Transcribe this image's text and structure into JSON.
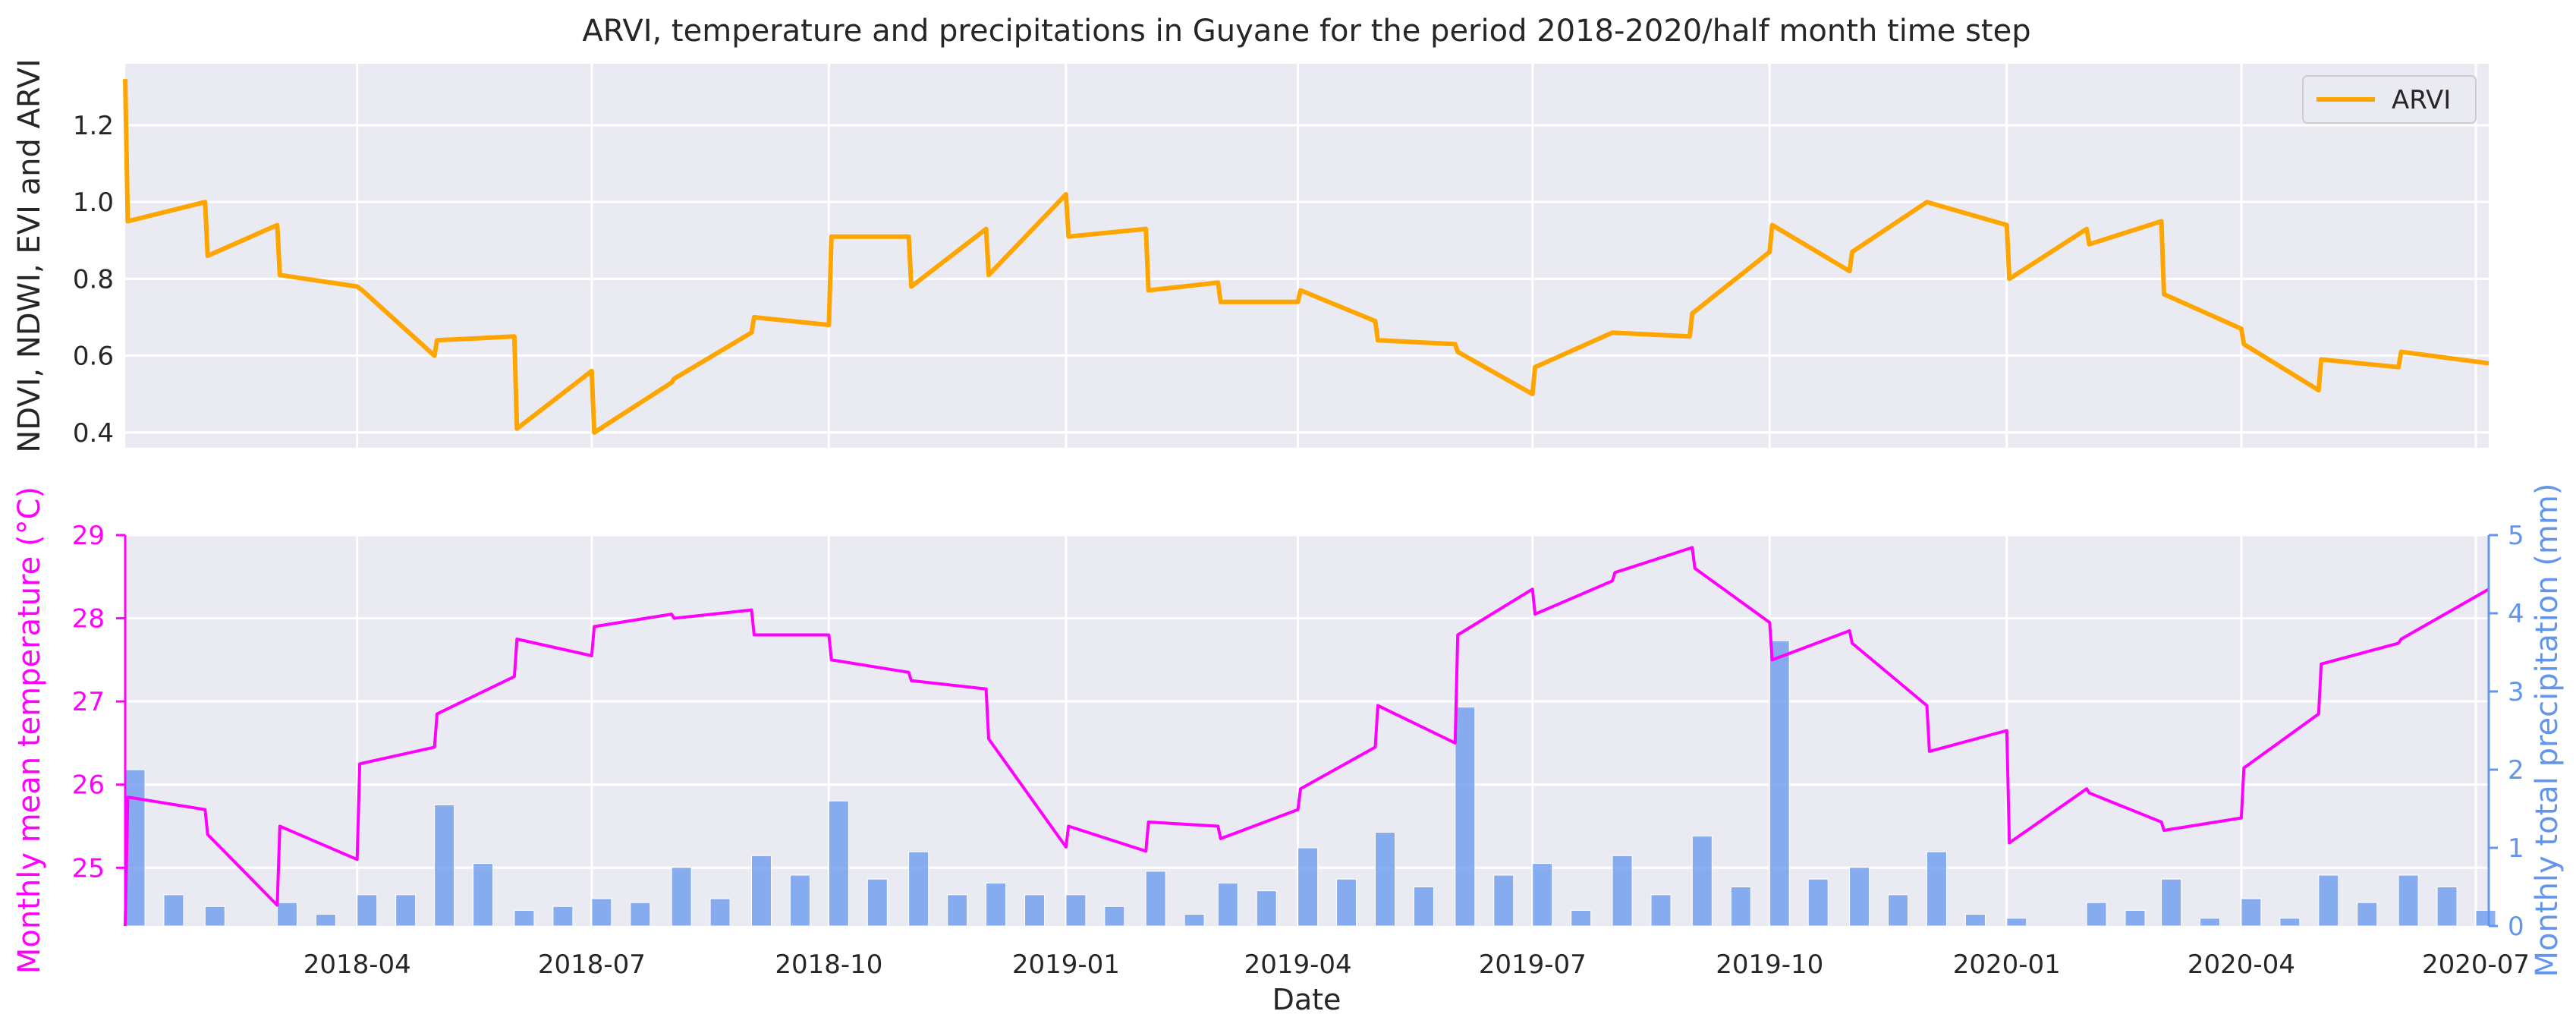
{
  "chart_data": [
    {
      "type": "line",
      "title": "ARVI, temperature and precipitations in Guyane for the period 2018-2020/half month time step",
      "ylabel": "NDVI, NDWI, EVI and ARVI",
      "ylim": [
        0.36,
        1.36
      ],
      "xlim": [
        "2018-01-01",
        "2020-07-06"
      ],
      "yticks": [
        "0.4",
        "0.6",
        "0.8",
        "1.0",
        "1.2"
      ],
      "ytick_values": [
        0.4,
        0.6,
        0.8,
        1.0,
        1.2
      ],
      "grid": true,
      "legend_position": "top-right",
      "colors": {
        "plot_bg": "#EAEAF2",
        "grid": "#FFFFFF",
        "arvi": "#FFA500",
        "tick_text": "#262626"
      },
      "series": [
        {
          "name": "ARVI",
          "x": [
            "2018-01-01",
            "2018-01-02",
            "2018-02-01",
            "2018-02-02",
            "2018-03-01",
            "2018-03-02",
            "2018-04-01",
            "2018-04-03",
            "2018-05-01",
            "2018-05-02",
            "2018-06-01",
            "2018-06-02",
            "2018-07-01",
            "2018-07-02",
            "2018-08-01",
            "2018-08-02",
            "2018-09-01",
            "2018-09-02",
            "2018-10-01",
            "2018-10-02",
            "2018-11-01",
            "2018-11-02",
            "2018-12-01",
            "2018-12-02",
            "2019-01-01",
            "2019-01-02",
            "2019-02-01",
            "2019-02-02",
            "2019-03-01",
            "2019-03-02",
            "2019-04-01",
            "2019-04-02",
            "2019-05-01",
            "2019-05-02",
            "2019-06-01",
            "2019-06-02",
            "2019-07-01",
            "2019-07-02",
            "2019-08-01",
            "2019-08-31",
            "2019-09-01",
            "2019-10-01",
            "2019-10-02",
            "2019-11-01",
            "2019-11-02",
            "2019-12-01",
            "2020-01-01",
            "2020-01-02",
            "2020-02-01",
            "2020-02-02",
            "2020-03-01",
            "2020-03-02",
            "2020-04-01",
            "2020-04-02",
            "2020-05-01",
            "2020-05-02",
            "2020-06-01",
            "2020-06-02",
            "2020-07-06"
          ],
          "y": [
            1.32,
            0.95,
            1.0,
            0.86,
            0.94,
            0.81,
            0.78,
            0.77,
            0.6,
            0.64,
            0.65,
            0.41,
            0.56,
            0.4,
            0.53,
            0.54,
            0.66,
            0.7,
            0.68,
            0.91,
            0.91,
            0.78,
            0.93,
            0.81,
            1.02,
            0.91,
            0.93,
            0.77,
            0.79,
            0.74,
            0.74,
            0.77,
            0.69,
            0.64,
            0.63,
            0.61,
            0.5,
            0.57,
            0.66,
            0.65,
            0.71,
            0.87,
            0.94,
            0.82,
            0.87,
            1.0,
            0.94,
            0.8,
            0.93,
            0.89,
            0.95,
            0.76,
            0.67,
            0.63,
            0.51,
            0.59,
            0.57,
            0.61,
            0.58
          ]
        }
      ]
    },
    {
      "type": "line",
      "xlabel": "Date",
      "ylabel": "Monthly mean temperature (°C)",
      "ylabel_right": "Monthly total precipitation (mm)",
      "ylim": [
        24.3,
        29.0
      ],
      "ylim_right": [
        0,
        5
      ],
      "xlim": [
        "2018-01-01",
        "2020-07-06"
      ],
      "yticks": [
        "25",
        "26",
        "27",
        "28",
        "29"
      ],
      "ytick_values": [
        25,
        26,
        27,
        28,
        29
      ],
      "yticks_right": [
        "0",
        "1",
        "2",
        "3",
        "4",
        "5"
      ],
      "ytick_values_right": [
        0,
        1,
        2,
        3,
        4,
        5
      ],
      "xticks": [
        "2018-04",
        "2018-07",
        "2018-10",
        "2019-01",
        "2019-04",
        "2019-07",
        "2019-10",
        "2020-01",
        "2020-04",
        "2020-07"
      ],
      "grid": true,
      "colors": {
        "temperature": "#FF00FF",
        "precip": "#6495ED",
        "plot_bg": "#EAEAF2",
        "grid": "#FFFFFF"
      },
      "series": [
        {
          "role": "temperature",
          "x": [
            "2018-01-01",
            "2018-01-02",
            "2018-02-01",
            "2018-02-02",
            "2018-03-01",
            "2018-03-02",
            "2018-04-01",
            "2018-04-02",
            "2018-05-01",
            "2018-05-02",
            "2018-06-01",
            "2018-06-02",
            "2018-07-01",
            "2018-07-02",
            "2018-08-01",
            "2018-08-02",
            "2018-09-01",
            "2018-09-02",
            "2018-10-01",
            "2018-10-02",
            "2018-11-01",
            "2018-11-02",
            "2018-12-01",
            "2018-12-02",
            "2019-01-01",
            "2019-01-02",
            "2019-02-01",
            "2019-02-02",
            "2019-03-01",
            "2019-03-02",
            "2019-04-01",
            "2019-04-02",
            "2019-05-01",
            "2019-05-02",
            "2019-06-01",
            "2019-06-02",
            "2019-07-01",
            "2019-07-02",
            "2019-08-01",
            "2019-08-02",
            "2019-09-01",
            "2019-09-02",
            "2019-10-01",
            "2019-10-02",
            "2019-11-01",
            "2019-11-02",
            "2019-12-01",
            "2019-12-02",
            "2020-01-01",
            "2020-01-02",
            "2020-02-01",
            "2020-02-02",
            "2020-03-01",
            "2020-03-02",
            "2020-04-01",
            "2020-04-02",
            "2020-05-01",
            "2020-05-02",
            "2020-06-01",
            "2020-06-02",
            "2020-07-06"
          ],
          "y": [
            24.3,
            25.85,
            25.7,
            25.4,
            24.55,
            25.5,
            25.1,
            26.25,
            26.45,
            26.85,
            27.3,
            27.75,
            27.55,
            27.9,
            28.05,
            28.0,
            28.1,
            27.8,
            27.8,
            27.5,
            27.35,
            27.25,
            27.15,
            26.55,
            25.25,
            25.5,
            25.2,
            25.55,
            25.5,
            25.35,
            25.7,
            25.95,
            26.45,
            26.95,
            26.5,
            27.8,
            28.35,
            28.05,
            28.45,
            28.55,
            28.85,
            28.6,
            27.95,
            27.5,
            27.85,
            27.7,
            26.95,
            26.4,
            26.65,
            25.3,
            25.95,
            25.9,
            25.55,
            25.45,
            25.6,
            26.2,
            26.85,
            27.45,
            27.7,
            27.75,
            28.35
          ]
        },
        {
          "role": "precipitation",
          "x": [
            "2018-01-01",
            "2018-01-16",
            "2018-02-01",
            "2018-02-16",
            "2018-03-01",
            "2018-03-16",
            "2018-04-01",
            "2018-04-16",
            "2018-05-01",
            "2018-05-16",
            "2018-06-01",
            "2018-06-16",
            "2018-07-01",
            "2018-07-16",
            "2018-08-01",
            "2018-08-16",
            "2018-09-01",
            "2018-09-16",
            "2018-10-01",
            "2018-10-16",
            "2018-11-01",
            "2018-11-16",
            "2018-12-01",
            "2018-12-16",
            "2019-01-01",
            "2019-01-16",
            "2019-02-01",
            "2019-02-16",
            "2019-03-01",
            "2019-03-16",
            "2019-04-01",
            "2019-04-16",
            "2019-05-01",
            "2019-05-16",
            "2019-06-01",
            "2019-06-16",
            "2019-07-01",
            "2019-07-16",
            "2019-08-01",
            "2019-08-16",
            "2019-09-01",
            "2019-09-16",
            "2019-10-01",
            "2019-10-16",
            "2019-11-01",
            "2019-11-16",
            "2019-12-01",
            "2019-12-16",
            "2020-01-01",
            "2020-01-16",
            "2020-02-01",
            "2020-02-16",
            "2020-03-01",
            "2020-03-16",
            "2020-04-01",
            "2020-04-16",
            "2020-05-01",
            "2020-05-16",
            "2020-06-01",
            "2020-06-16",
            "2020-07-01"
          ],
          "y": [
            2.0,
            0.4,
            0.25,
            0.0,
            0.3,
            0.15,
            0.4,
            0.4,
            1.55,
            0.8,
            0.2,
            0.25,
            0.35,
            0.3,
            0.75,
            0.35,
            0.9,
            0.65,
            1.6,
            0.6,
            0.95,
            0.4,
            0.55,
            0.4,
            0.4,
            0.25,
            0.7,
            0.15,
            0.55,
            0.45,
            1.0,
            0.6,
            1.2,
            0.5,
            2.8,
            0.65,
            0.8,
            0.2,
            0.9,
            0.4,
            1.15,
            0.5,
            3.65,
            0.6,
            0.75,
            0.4,
            0.95,
            0.15,
            0.1,
            0.0,
            0.3,
            0.2,
            0.6,
            0.1,
            0.35,
            0.1,
            0.65,
            0.3,
            0.65,
            0.5,
            0.2
          ]
        }
      ]
    }
  ]
}
